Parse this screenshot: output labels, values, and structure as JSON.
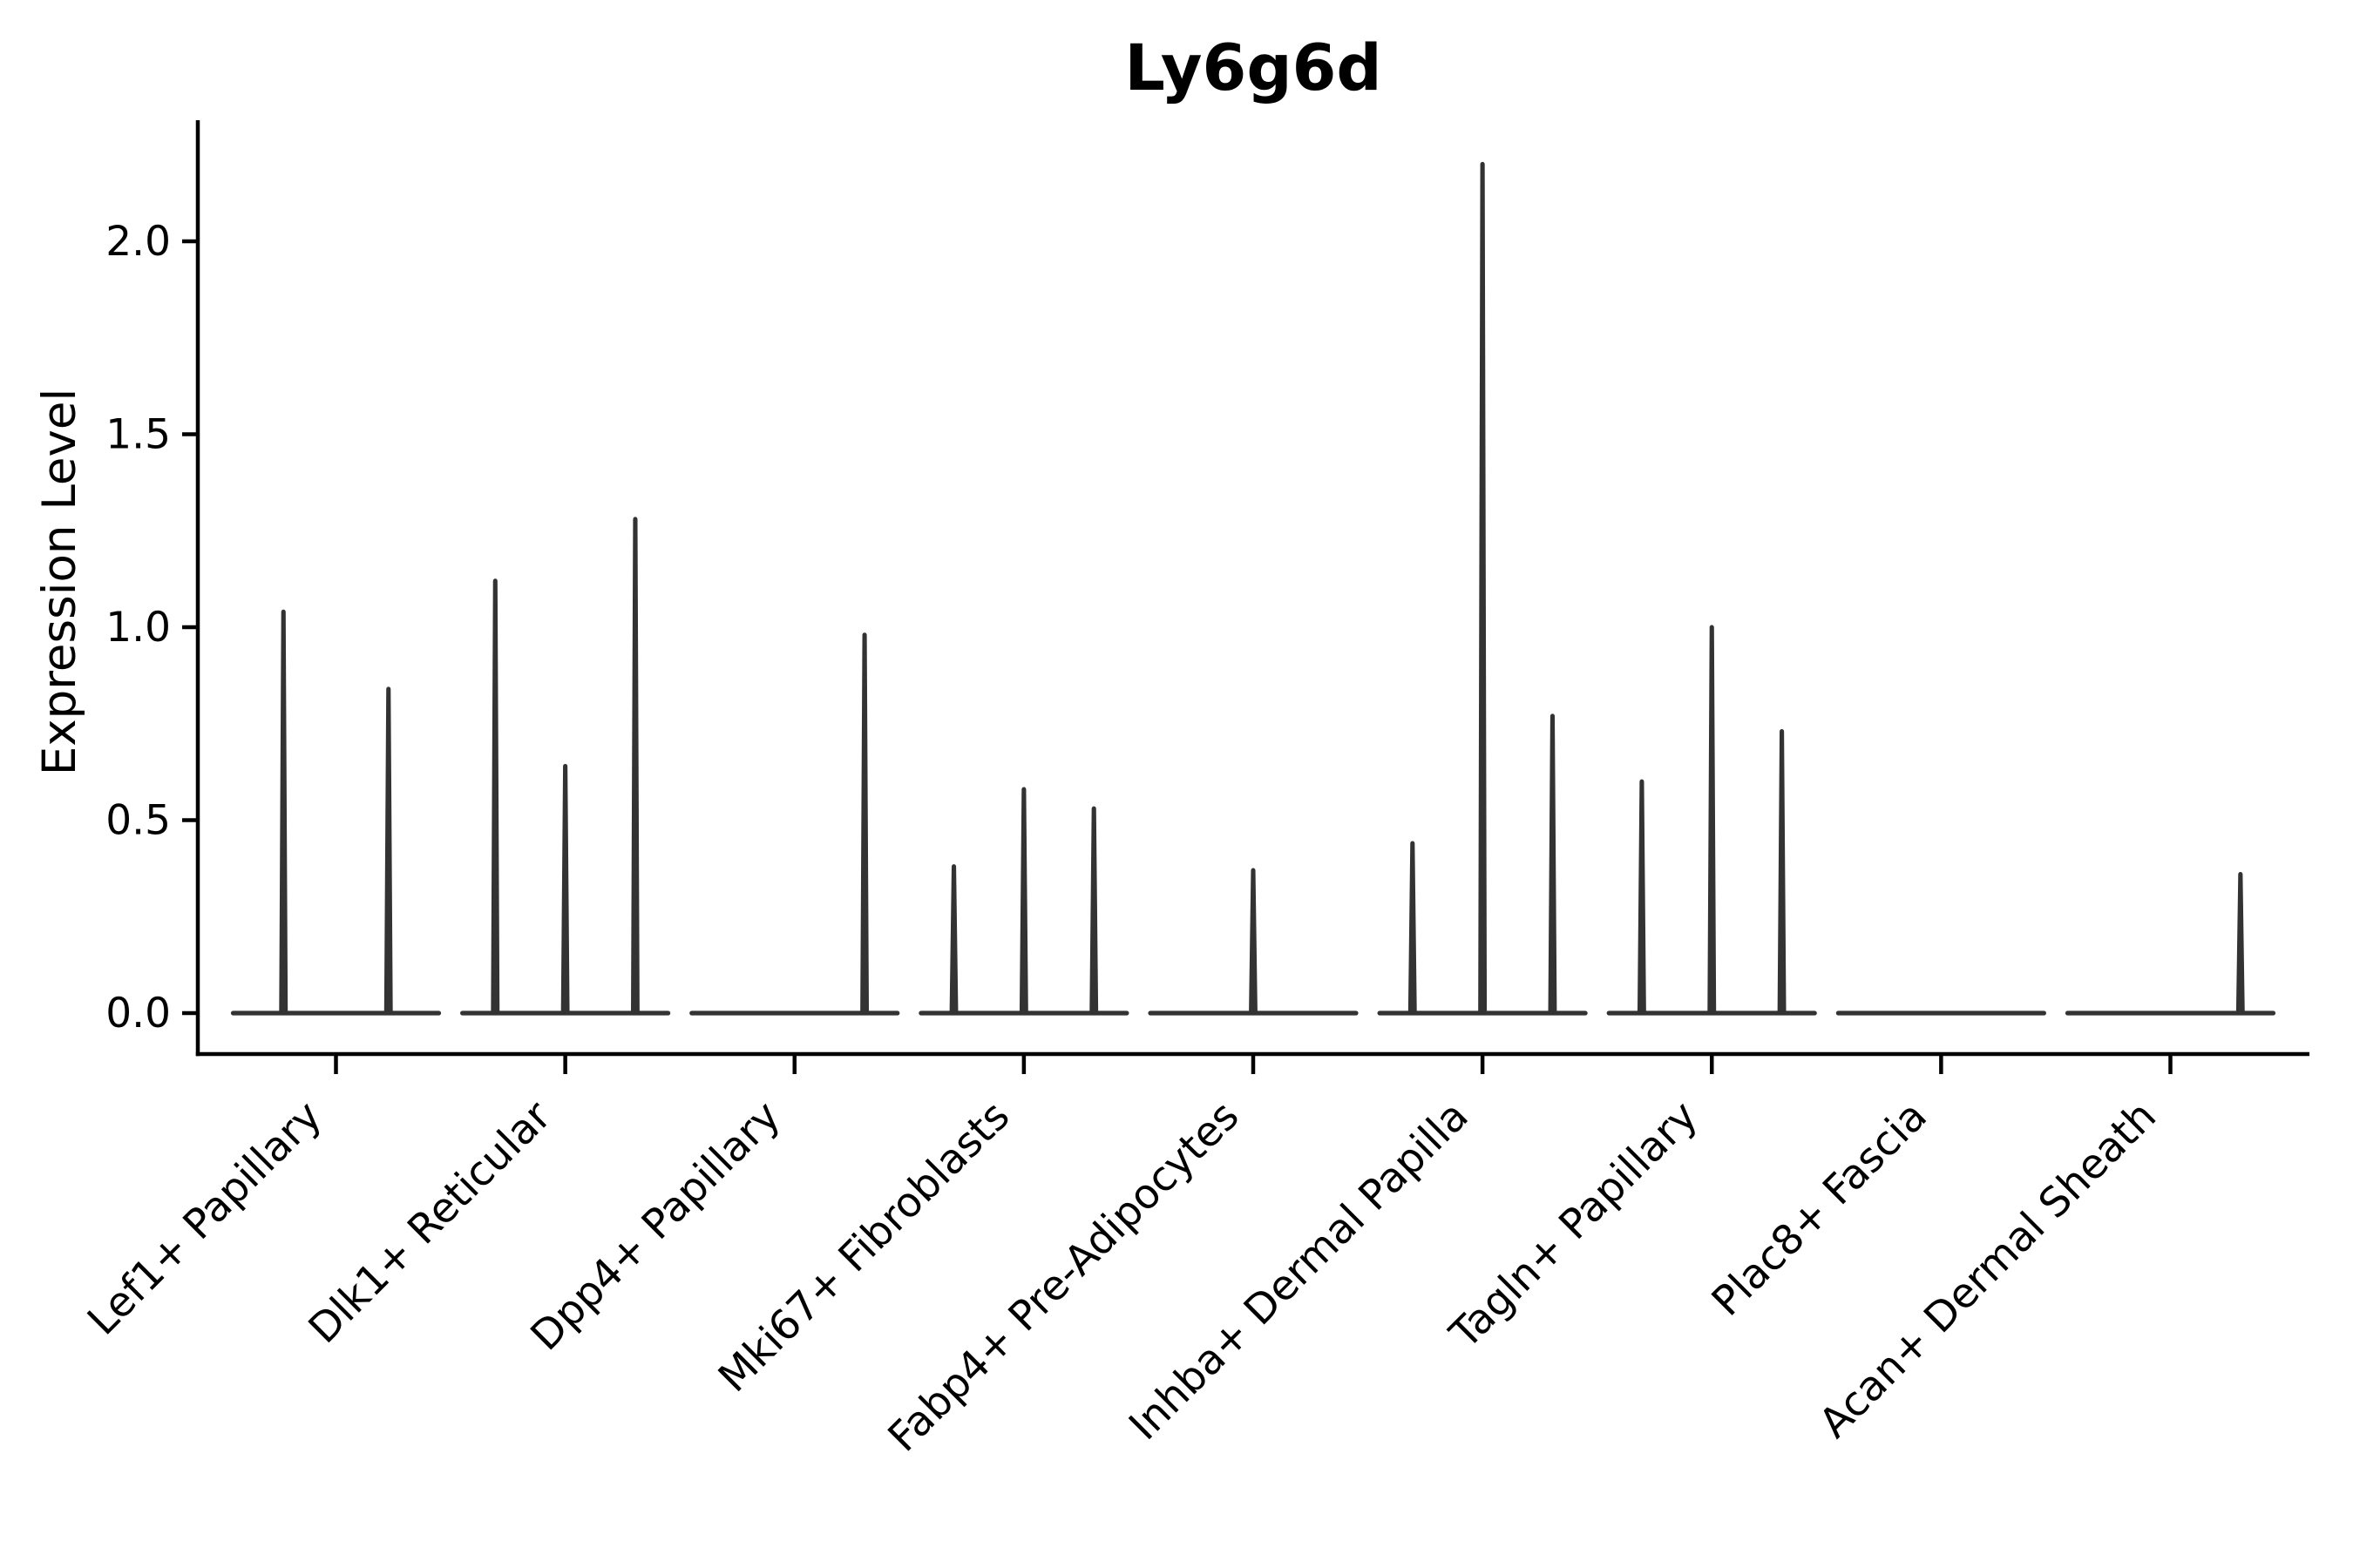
{
  "title": "Ly6g6d",
  "ylabel": "Expression Level",
  "colors": {
    "violin": "#333333",
    "axis": "#000000",
    "text": "#000000",
    "background": "#ffffff"
  },
  "chart_data": {
    "type": "violin",
    "title": "Ly6g6d",
    "xlabel": "",
    "ylabel": "Expression Level",
    "ytick_labels": [
      "0.0",
      "0.5",
      "1.0",
      "1.5",
      "2.0"
    ],
    "ytick_values": [
      0.0,
      0.5,
      1.0,
      1.5,
      2.0
    ],
    "ylim": [
      0,
      2.31
    ],
    "grid": false,
    "legend": null,
    "categories": [
      "Lef1+ Papillary",
      "Dlk1+ Reticular",
      "Dpp4+ Papillary",
      "Mki67+ Fibroblasts",
      "Fabp4+ Pre-Adipocytes",
      "Inhba+ Dermal Papilla",
      "Tagln+ Papillary",
      "Plac8+ Fascia",
      "Acan+ Dermal Sheath"
    ],
    "groups": [
      {
        "category": "Lef1+ Papillary",
        "violin_max": [
          1.04,
          0.84
        ]
      },
      {
        "category": "Dlk1+ Reticular",
        "violin_max": [
          1.12,
          0.64,
          1.28
        ]
      },
      {
        "category": "Dpp4+ Papillary",
        "violin_max": [
          0,
          0,
          0.98
        ]
      },
      {
        "category": "Mki67+ Fibroblasts",
        "violin_max": [
          0.38,
          0.58,
          0.53
        ]
      },
      {
        "category": "Fabp4+ Pre-Adipocytes",
        "violin_max": [
          0,
          0.37,
          0
        ]
      },
      {
        "category": "Inhba+ Dermal Papilla",
        "violin_max": [
          0.44,
          2.2,
          0.77
        ]
      },
      {
        "category": "Tagln+ Papillary",
        "violin_max": [
          0.6,
          1.0,
          0.73
        ]
      },
      {
        "category": "Plac8+ Fascia",
        "violin_max": [
          0,
          0,
          0
        ]
      },
      {
        "category": "Acan+ Dermal Sheath",
        "violin_max": [
          0,
          0,
          0.36
        ]
      }
    ]
  }
}
